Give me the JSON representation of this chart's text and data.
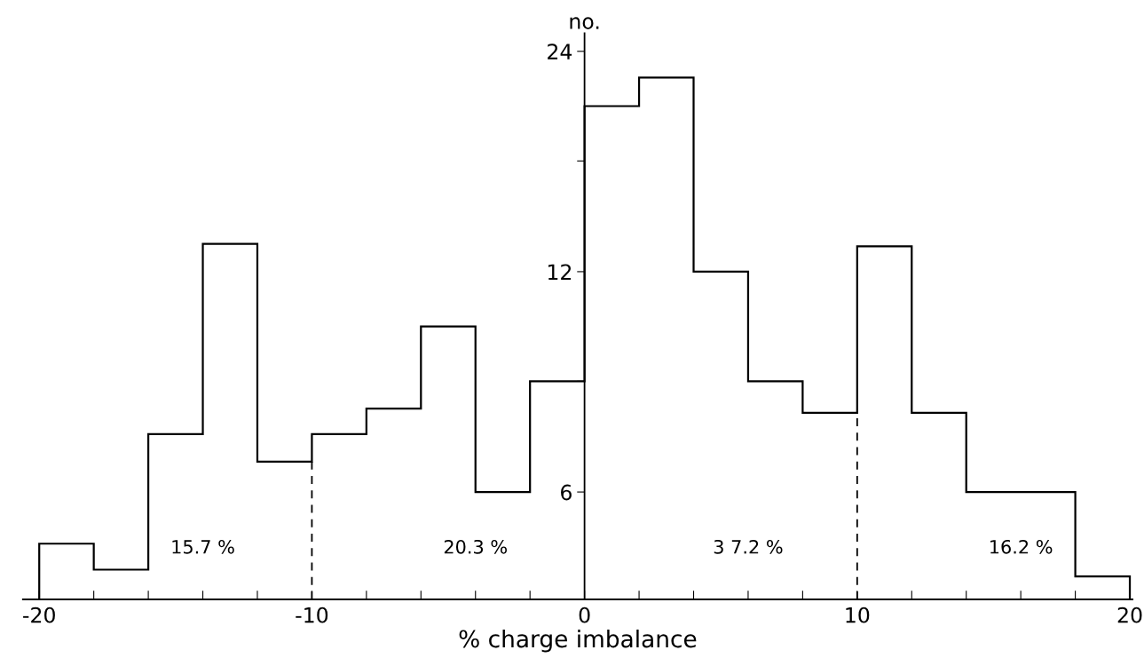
{
  "chart_data": {
    "type": "histogram",
    "xlabel": "% charge imbalance",
    "ylabel": "no.",
    "bins": [
      -20,
      -18,
      -16,
      -14,
      -12,
      -10,
      -8,
      -6,
      -4,
      -2,
      0,
      2,
      4,
      6,
      8,
      10,
      12,
      14,
      16,
      18,
      20
    ],
    "values": [
      5.1,
      4.7,
      7.2,
      13.1,
      6.6,
      7.2,
      7.8,
      10.1,
      6.0,
      8.5,
      20.2,
      22.1,
      12.0,
      8.5,
      7.7,
      13.0,
      7.7,
      6.0,
      6.0,
      4.6
    ],
    "color": "#000000",
    "log": true,
    "xlim": [
      -20.6,
      20.1
    ],
    "xticks": [
      -20,
      {
        "value": -18,
        "label": null
      },
      {
        "value": -16,
        "label": null
      },
      {
        "value": -14,
        "label": null
      },
      {
        "value": -12,
        "label": null
      },
      -10,
      {
        "value": -8,
        "label": null
      },
      {
        "value": -6,
        "label": null
      },
      {
        "value": -4,
        "label": null
      },
      {
        "value": -2,
        "label": null
      },
      0,
      {
        "value": 2,
        "label": null
      },
      {
        "value": 4,
        "label": null
      },
      {
        "value": 6,
        "label": null
      },
      {
        "value": 8,
        "label": null
      },
      10,
      {
        "value": 12,
        "label": null
      },
      {
        "value": 14,
        "label": null
      },
      {
        "value": 16,
        "label": null
      },
      {
        "value": 18,
        "label": null
      },
      20
    ],
    "ylim": [
      4.28,
      25.4
    ],
    "yticks": [
      6,
      {
        "value": 8.5,
        "label": null
      },
      12,
      {
        "value": 17,
        "label": null
      },
      24
    ],
    "grid": false,
    "ref_lines": [
      {
        "axis": "x",
        "value": -10,
        "label": null,
        "line_style": "dashed",
        "color": "#000000"
      },
      {
        "axis": "x",
        "value": 10,
        "label": null,
        "line_style": "dashed",
        "color": "#000000"
      }
    ],
    "annotations": [
      "15.7 %",
      "20.3 %",
      "3 7.2 %",
      "16.2 %"
    ]
  }
}
